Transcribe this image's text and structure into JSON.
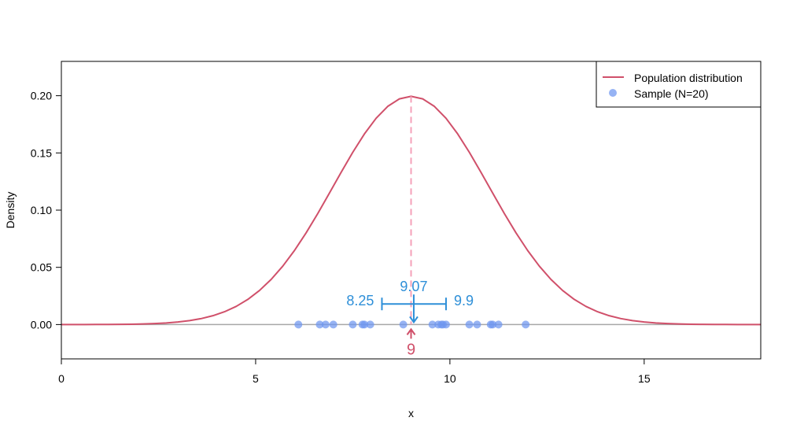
{
  "chart_data": {
    "type": "line",
    "xlabel": "x",
    "ylabel": "Density",
    "xlim": [
      0,
      18
    ],
    "ylim": [
      -0.03,
      0.23
    ],
    "x_ticks": [
      0,
      5,
      10,
      15
    ],
    "x_tick_labels": [
      "0",
      "5",
      "10",
      "15"
    ],
    "y_ticks": [
      0.0,
      0.05,
      0.1,
      0.15,
      0.2
    ],
    "y_tick_labels": [
      "0.00",
      "0.05",
      "0.10",
      "0.15",
      "0.20"
    ],
    "grid": false,
    "legend_position": "top-right",
    "series": [
      {
        "name": "Population distribution",
        "kind": "normal-density-curve",
        "mean": 9,
        "sd": 2,
        "color": "#D0506A"
      },
      {
        "name": "Sample (N=20)",
        "kind": "points",
        "color": "#6E96F0",
        "x": [
          6.1,
          6.65,
          6.8,
          7.0,
          7.5,
          7.75,
          7.8,
          7.95,
          8.8,
          9.55,
          9.7,
          9.78,
          9.82,
          9.9,
          10.5,
          10.7,
          11.05,
          11.1,
          11.25,
          11.95
        ],
        "y": [
          0,
          0,
          0,
          0,
          0,
          0,
          0,
          0,
          0,
          0,
          0,
          0,
          0,
          0,
          0,
          0,
          0,
          0,
          0,
          0
        ]
      }
    ],
    "population_mean": {
      "value": 9,
      "label": "9",
      "color": "#D0506A",
      "dash_color": "#F4A0B8"
    },
    "sample_mean": {
      "value": 9.07,
      "label": "9.07",
      "color": "#2E8FD8"
    },
    "interval": {
      "lower": 8.25,
      "upper": 9.9,
      "lower_label": "8.25",
      "upper_label": "9.9",
      "y": 0.018,
      "color": "#2E8FD8"
    },
    "baseline_color": "#A8A8A8"
  }
}
